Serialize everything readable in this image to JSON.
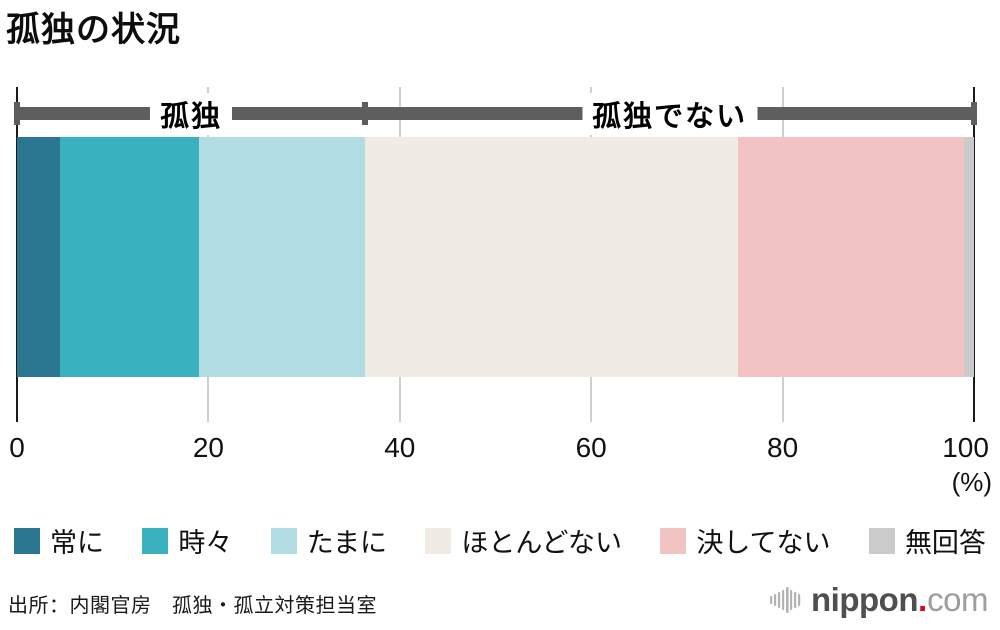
{
  "title": "孤独の状況",
  "chart_data": {
    "type": "bar",
    "subtype": "horizontal-stacked-100pct",
    "title": "孤独の状況",
    "unit": "%",
    "xlim": [
      0,
      100
    ],
    "x_ticks": [
      0,
      20,
      40,
      60,
      80,
      100
    ],
    "x_axis_unit_label": "(%)",
    "grid": true,
    "legend_position": "bottom",
    "categories": [
      "常に",
      "時々",
      "たまに",
      "ほとんどない",
      "決してない",
      "無回答"
    ],
    "values": [
      4.5,
      14.5,
      17.4,
      38.9,
      23.7,
      1.0
    ],
    "colors": [
      "#2b7690",
      "#3ab1bf",
      "#b2dde2",
      "#f0ece4",
      "#f1c3c3",
      "#cbcbcb"
    ],
    "groups": [
      {
        "label": "孤独",
        "from": 0,
        "to": 36.4
      },
      {
        "label": "孤独でない",
        "from": 36.4,
        "to": 100
      }
    ],
    "bracket_color": "#5e5e5e"
  },
  "source": "出所：内閣官房　孤独・孤立対策担当室",
  "logo": {
    "icon": "soundwave-icon",
    "name": "nippon",
    "dot": ".",
    "tld": "com"
  }
}
